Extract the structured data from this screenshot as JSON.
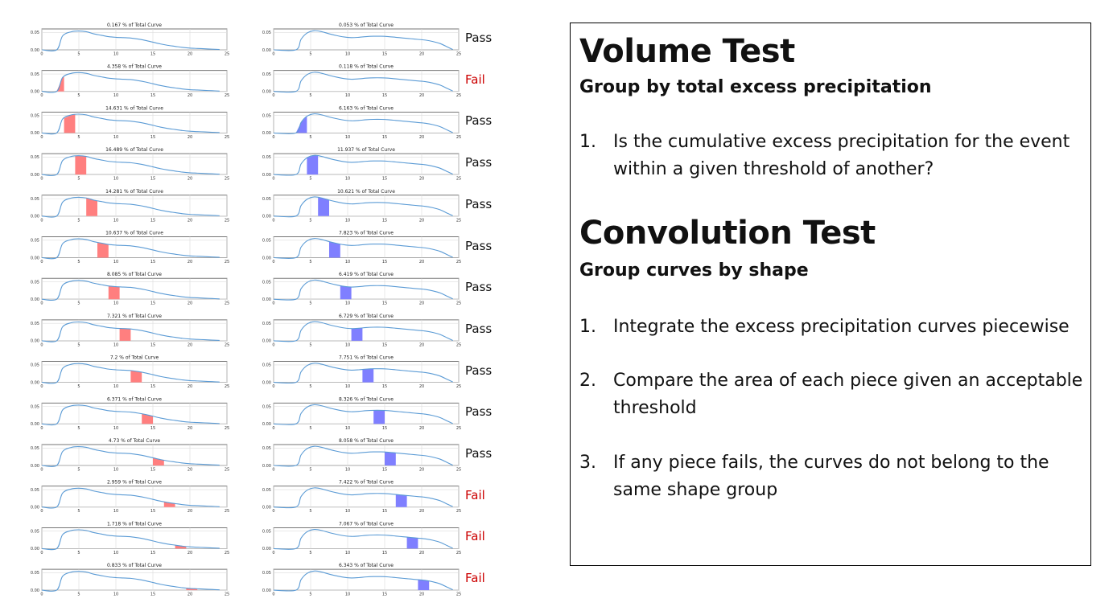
{
  "chart_data": {
    "type": "area",
    "layout": "grid of small-multiple line plots with shaded integration slices",
    "xlim": [
      0,
      25
    ],
    "ylim": [
      0,
      0.06
    ],
    "xticks": [
      "0",
      "5",
      "10",
      "15",
      "20",
      "25"
    ],
    "yticks": [
      "0.00",
      "0.05"
    ],
    "grid": true,
    "columns": [
      {
        "slice_color": "#ff7f7f",
        "curve_shape": [
          [
            0,
            0
          ],
          [
            2,
            0.0
          ],
          [
            2.8,
            0.04
          ],
          [
            4,
            0.052
          ],
          [
            5,
            0.054
          ],
          [
            6,
            0.052
          ],
          [
            7,
            0.046
          ],
          [
            8,
            0.042
          ],
          [
            9,
            0.038
          ],
          [
            10,
            0.036
          ],
          [
            11,
            0.035
          ],
          [
            12,
            0.034
          ],
          [
            13,
            0.031
          ],
          [
            14,
            0.027
          ],
          [
            15,
            0.022
          ],
          [
            16,
            0.017
          ],
          [
            17,
            0.013
          ],
          [
            18,
            0.01
          ],
          [
            19,
            0.007
          ],
          [
            20,
            0.005
          ],
          [
            21,
            0.004
          ],
          [
            22,
            0.003
          ],
          [
            23,
            0.002
          ],
          [
            24,
            0.001
          ]
        ],
        "panels": [
          {
            "title": "0.167 % of Total Curve",
            "slice": null
          },
          {
            "title": "4.358 % of Total Curve",
            "slice": [
              2,
              3
            ]
          },
          {
            "title": "14.631 % of Total Curve",
            "slice": [
              3,
              4.5
            ]
          },
          {
            "title": "16.489 % of Total Curve",
            "slice": [
              4.5,
              6
            ]
          },
          {
            "title": "14.281 % of Total Curve",
            "slice": [
              6,
              7.5
            ]
          },
          {
            "title": "10.637 % of Total Curve",
            "slice": [
              7.5,
              9
            ]
          },
          {
            "title": "8.085 % of Total Curve",
            "slice": [
              9,
              10.5
            ]
          },
          {
            "title": "7.321 % of Total Curve",
            "slice": [
              10.5,
              12
            ]
          },
          {
            "title": "7.2 % of Total Curve",
            "slice": [
              12,
              13.5
            ]
          },
          {
            "title": "6.371 % of Total Curve",
            "slice": [
              13.5,
              15
            ]
          },
          {
            "title": "4.73 % of Total Curve",
            "slice": [
              15,
              16.5
            ]
          },
          {
            "title": "2.959 % of Total Curve",
            "slice": [
              16.5,
              18
            ]
          },
          {
            "title": "1.718 % of Total Curve",
            "slice": [
              18,
              19.5
            ]
          },
          {
            "title": "0.833 % of Total Curve",
            "slice": [
              19.5,
              21
            ]
          }
        ]
      },
      {
        "slice_color": "#7f7fff",
        "curve_shape": [
          [
            0,
            0
          ],
          [
            3,
            0
          ],
          [
            3.7,
            0.03
          ],
          [
            4.5,
            0.048
          ],
          [
            5.5,
            0.055
          ],
          [
            6.5,
            0.052
          ],
          [
            7.5,
            0.046
          ],
          [
            8.5,
            0.041
          ],
          [
            9.5,
            0.037
          ],
          [
            10.5,
            0.035
          ],
          [
            11.5,
            0.036
          ],
          [
            12.5,
            0.038
          ],
          [
            13.5,
            0.039
          ],
          [
            14.5,
            0.039
          ],
          [
            15.5,
            0.038
          ],
          [
            16.5,
            0.036
          ],
          [
            17.5,
            0.034
          ],
          [
            18.5,
            0.032
          ],
          [
            19.5,
            0.03
          ],
          [
            20.5,
            0.028
          ],
          [
            21.5,
            0.024
          ],
          [
            22.5,
            0.018
          ],
          [
            23.5,
            0.008
          ],
          [
            24.2,
            0.001
          ]
        ],
        "panels": [
          {
            "title": "0.053 % of Total Curve",
            "slice": null
          },
          {
            "title": "0.118 % of Total Curve",
            "slice": null
          },
          {
            "title": "6.163 % of Total Curve",
            "slice": [
              3,
              4.5
            ]
          },
          {
            "title": "11.937 % of Total Curve",
            "slice": [
              4.5,
              6
            ]
          },
          {
            "title": "10.621 % of Total Curve",
            "slice": [
              6,
              7.5
            ]
          },
          {
            "title": "7.823 % of Total Curve",
            "slice": [
              7.5,
              9
            ]
          },
          {
            "title": "6.419 % of Total Curve",
            "slice": [
              9,
              10.5
            ]
          },
          {
            "title": "6.729 % of Total Curve",
            "slice": [
              10.5,
              12
            ]
          },
          {
            "title": "7.751 % of Total Curve",
            "slice": [
              12,
              13.5
            ]
          },
          {
            "title": "8.326 % of Total Curve",
            "slice": [
              13.5,
              15
            ]
          },
          {
            "title": "8.058 % of Total Curve",
            "slice": [
              15,
              16.5
            ]
          },
          {
            "title": "7.422 % of Total Curve",
            "slice": [
              16.5,
              18
            ]
          },
          {
            "title": "7.067 % of Total Curve",
            "slice": [
              18,
              19.5
            ]
          },
          {
            "title": "6.343 % of Total Curve",
            "slice": [
              19.5,
              21
            ]
          }
        ]
      }
    ]
  },
  "verdicts": [
    {
      "label": "Pass",
      "status": "pass"
    },
    {
      "label": "Fail",
      "status": "fail"
    },
    {
      "label": "Pass",
      "status": "pass"
    },
    {
      "label": "Pass",
      "status": "pass"
    },
    {
      "label": "Pass",
      "status": "pass"
    },
    {
      "label": "Pass",
      "status": "pass"
    },
    {
      "label": "Pass",
      "status": "pass"
    },
    {
      "label": "Pass",
      "status": "pass"
    },
    {
      "label": "Pass",
      "status": "pass"
    },
    {
      "label": "Pass",
      "status": "pass"
    },
    {
      "label": "Pass",
      "status": "pass"
    },
    {
      "label": "Fail",
      "status": "fail"
    },
    {
      "label": "Fail",
      "status": "fail"
    },
    {
      "label": "Fail",
      "status": "fail"
    }
  ],
  "colors": {
    "curve": "#5b9bd5",
    "pass_text": "#111111",
    "fail_text": "#cc0000"
  },
  "panel": {
    "volume": {
      "title": "Volume Test",
      "subtitle": "Group by total excess precipitation",
      "items": [
        {
          "num": "1.",
          "text": "Is the cumulative excess precipitation for the event within a given threshold of another?"
        }
      ]
    },
    "convolution": {
      "title": "Convolution Test",
      "subtitle": "Group curves by shape",
      "items": [
        {
          "num": "1.",
          "text": "Integrate the excess precipitation curves piecewise"
        },
        {
          "num": "2.",
          "text": "Compare the area of each piece given an acceptable threshold"
        },
        {
          "num": "3.",
          "text": "If any piece fails, the curves do not belong to the same shape group"
        }
      ]
    }
  }
}
